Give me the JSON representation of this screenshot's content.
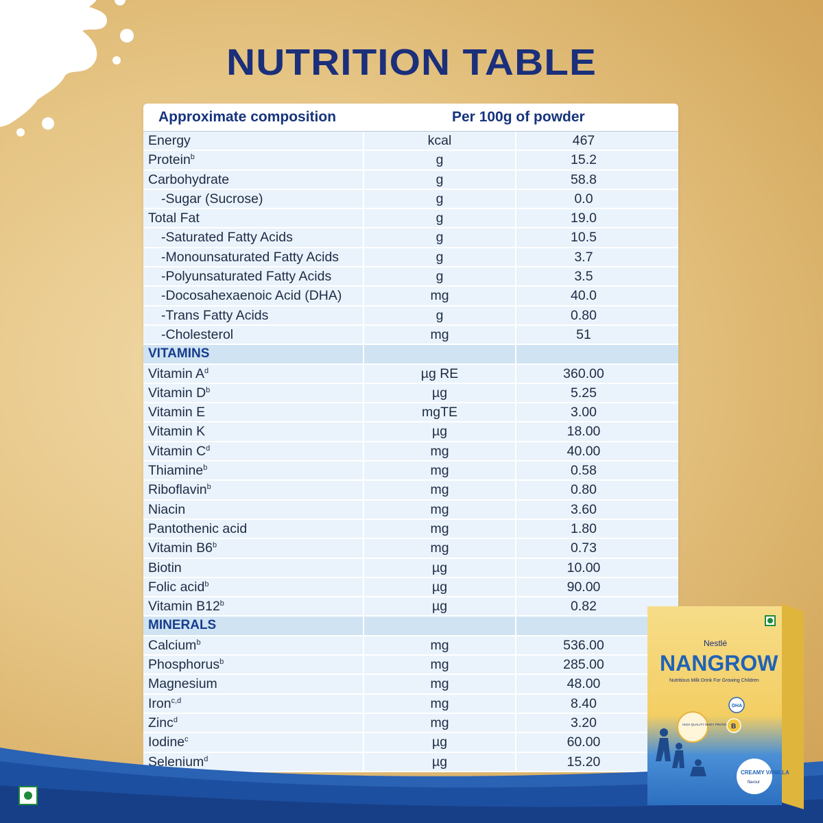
{
  "title": "NUTRITION TABLE",
  "header": {
    "col1": "Approximate composition",
    "col2": "Per 100g of powder"
  },
  "rows": [
    {
      "name": "Energy",
      "sup": "",
      "unit": "kcal",
      "value": "467",
      "indent": false
    },
    {
      "name": "Protein",
      "sup": "b",
      "unit": "g",
      "value": "15.2",
      "indent": false
    },
    {
      "name": "Carbohydrate",
      "sup": "",
      "unit": "g",
      "value": "58.8",
      "indent": false
    },
    {
      "name": "-Sugar (Sucrose)",
      "sup": "",
      "unit": "g",
      "value": "0.0",
      "indent": true
    },
    {
      "name": "Total Fat",
      "sup": "",
      "unit": "g",
      "value": "19.0",
      "indent": false
    },
    {
      "name": "-Saturated Fatty Acids",
      "sup": "",
      "unit": "g",
      "value": "10.5",
      "indent": true
    },
    {
      "name": "-Monounsaturated Fatty Acids",
      "sup": "",
      "unit": "g",
      "value": "3.7",
      "indent": true
    },
    {
      "name": "-Polyunsaturated Fatty Acids",
      "sup": "",
      "unit": "g",
      "value": "3.5",
      "indent": true
    },
    {
      "name": "-Docosahexaenoic Acid (DHA)",
      "sup": "",
      "unit": "mg",
      "value": "40.0",
      "indent": true
    },
    {
      "name": "-Trans Fatty Acids",
      "sup": "",
      "unit": "g",
      "value": "0.80",
      "indent": true
    },
    {
      "name": "-Cholesterol",
      "sup": "",
      "unit": "mg",
      "value": "51",
      "indent": true
    },
    {
      "section": "VITAMINS"
    },
    {
      "name": "Vitamin A",
      "sup": "d",
      "unit": "µg RE",
      "value": "360.00",
      "indent": false
    },
    {
      "name": "Vitamin D",
      "sup": "b",
      "unit": "µg",
      "value": "5.25",
      "indent": false
    },
    {
      "name": "Vitamin E",
      "sup": "",
      "unit": "mgTE",
      "value": "3.00",
      "indent": false
    },
    {
      "name": "Vitamin K",
      "sup": "",
      "unit": "µg",
      "value": "18.00",
      "indent": false
    },
    {
      "name": "Vitamin C",
      "sup": "d",
      "unit": "mg",
      "value": "40.00",
      "indent": false
    },
    {
      "name": "Thiamine",
      "sup": "b",
      "unit": "mg",
      "value": "0.58",
      "indent": false
    },
    {
      "name": "Riboflavin",
      "sup": "b",
      "unit": "mg",
      "value": "0.80",
      "indent": false
    },
    {
      "name": "Niacin",
      "sup": "",
      "unit": "mg",
      "value": "3.60",
      "indent": false
    },
    {
      "name": "Pantothenic acid",
      "sup": "",
      "unit": "mg",
      "value": "1.80",
      "indent": false
    },
    {
      "name": "Vitamin B6",
      "sup": "b",
      "unit": "mg",
      "value": "0.73",
      "indent": false
    },
    {
      "name": "Biotin",
      "sup": "",
      "unit": "µg",
      "value": "10.00",
      "indent": false
    },
    {
      "name": "Folic acid",
      "sup": "b",
      "unit": "µg",
      "value": "90.00",
      "indent": false
    },
    {
      "name": "Vitamin B12",
      "sup": "b",
      "unit": "µg",
      "value": "0.82",
      "indent": false
    },
    {
      "section": "MINERALS"
    },
    {
      "name": "Calcium",
      "sup": "b",
      "unit": "mg",
      "value": "536.00",
      "indent": false
    },
    {
      "name": "Phosphorus",
      "sup": "b",
      "unit": "mg",
      "value": "285.00",
      "indent": false
    },
    {
      "name": "Magnesium",
      "sup": "",
      "unit": "mg",
      "value": "48.00",
      "indent": false
    },
    {
      "name": "Iron",
      "sup": "c,d",
      "unit": "mg",
      "value": "8.40",
      "indent": false
    },
    {
      "name": "Zinc",
      "sup": "d",
      "unit": "mg",
      "value": "3.20",
      "indent": false
    },
    {
      "name": "Iodine",
      "sup": "c",
      "unit": "µg",
      "value": "60.00",
      "indent": false
    },
    {
      "name": "Selenium",
      "sup": "d",
      "unit": "µg",
      "value": "15.20",
      "indent": false
    }
  ],
  "pack": {
    "brand": "Nestlé",
    "name": "NANGROW",
    "tagline": "Nutritious Milk Drink For Growing Children",
    "badge_protein": "HIGH QUALITY WHEY PROTEIN",
    "badge_dha": "DHA",
    "badge_b": "B",
    "flavour": "CREAMY VANILLA",
    "flavour_sub": "flavour"
  },
  "colors": {
    "title": "#1b2f7a",
    "accent_blue": "#1f63b6",
    "veg_green": "#1f8a3a"
  }
}
